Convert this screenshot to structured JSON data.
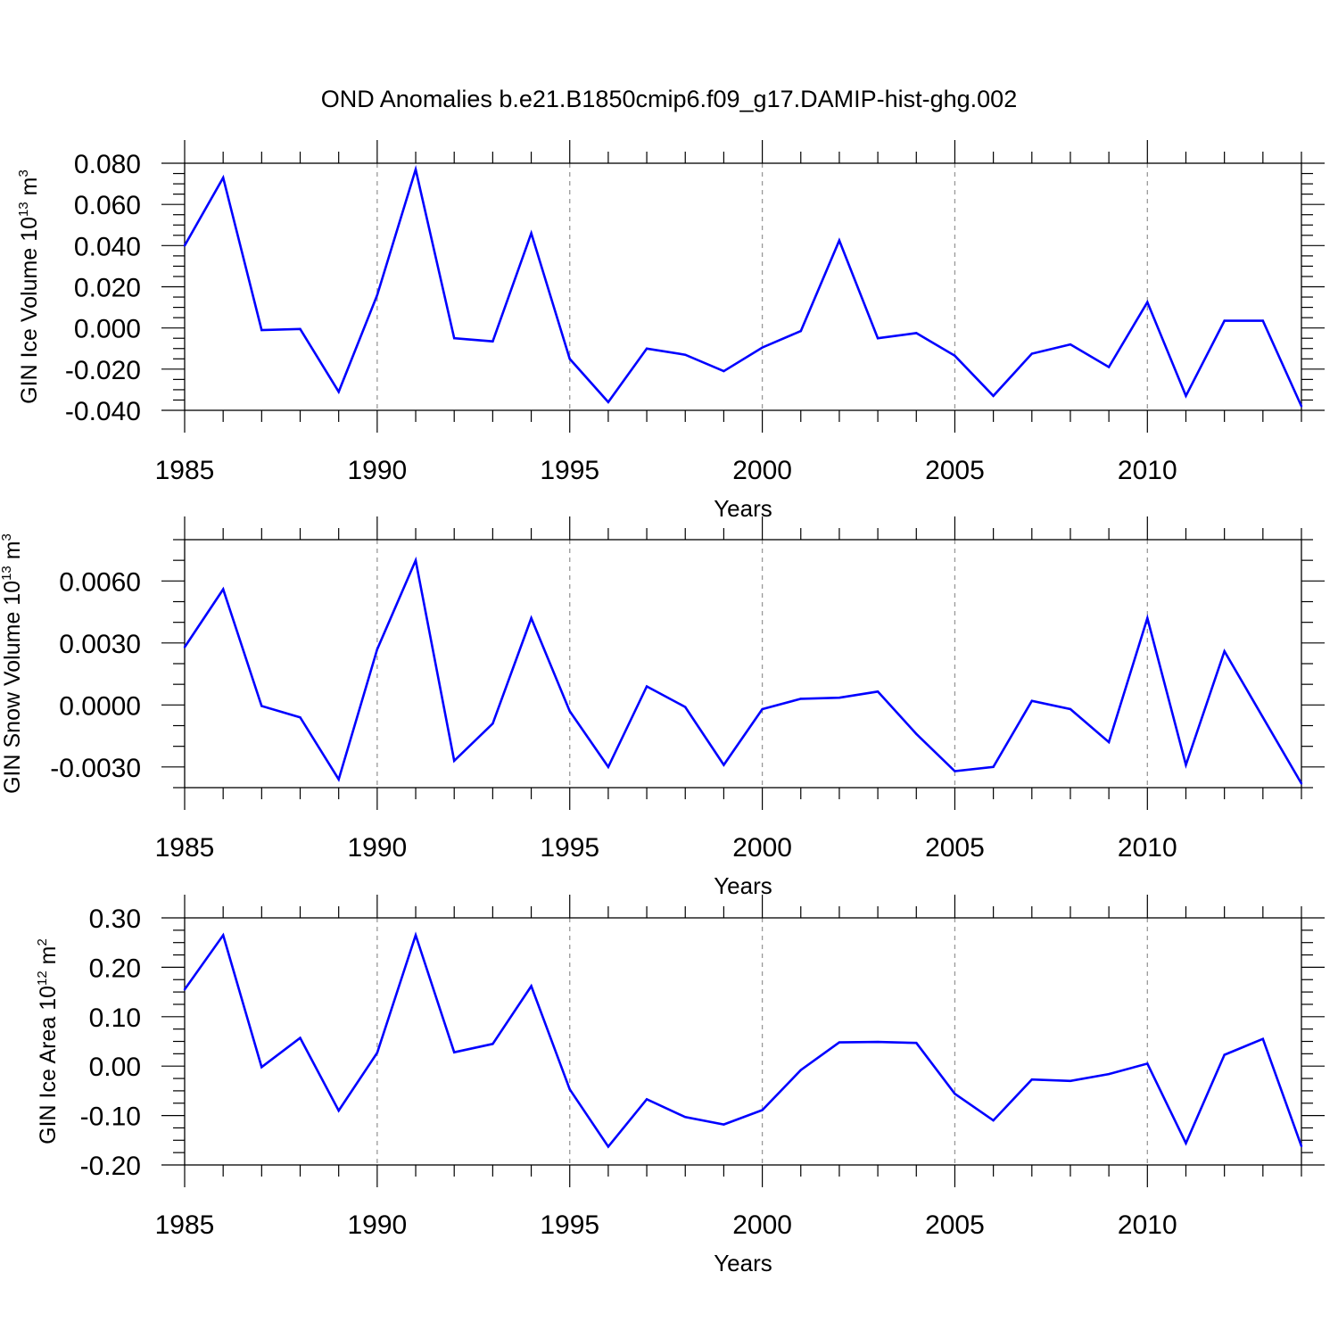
{
  "figure": {
    "title": "OND Anomalies b.e21.B1850cmip6.f09_g17.DAMIP-hist-ghg.002",
    "line_color": "#0000ff",
    "grid_color": "#999999"
  },
  "chart_data": [
    {
      "type": "line",
      "ylabel": {
        "base": "GIN Ice Volume 10",
        "exp": "13",
        "unit": " m",
        "unit_exp": "3"
      },
      "xlabel": "Years",
      "x": [
        1985,
        1986,
        1987,
        1988,
        1989,
        1990,
        1991,
        1992,
        1993,
        1994,
        1995,
        1996,
        1997,
        1998,
        1999,
        2000,
        2001,
        2002,
        2003,
        2004,
        2005,
        2006,
        2007,
        2008,
        2009,
        2010,
        2011,
        2012,
        2013,
        2014
      ],
      "series": [
        {
          "values": [
            0.04,
            0.073,
            -0.001,
            -0.0005,
            -0.031,
            0.016,
            0.077,
            -0.005,
            -0.0065,
            0.046,
            -0.015,
            -0.036,
            -0.01,
            -0.013,
            -0.021,
            -0.0095,
            -0.0015,
            0.0425,
            -0.005,
            -0.0025,
            -0.0135,
            -0.033,
            -0.0125,
            -0.008,
            -0.019,
            0.0125,
            -0.033,
            0.0035,
            0.0035,
            -0.038
          ]
        }
      ],
      "xlim": [
        1985,
        2014
      ],
      "ylim": [
        -0.04,
        0.08
      ],
      "xticks": [
        "1985",
        "1990",
        "1995",
        "2000",
        "2005",
        "2010"
      ],
      "xtick_values": [
        1985,
        1990,
        1995,
        2000,
        2005,
        2010
      ],
      "yticks": [
        "0.080",
        "0.060",
        "0.040",
        "0.020",
        "0.000",
        "-0.020",
        "-0.040"
      ],
      "ytick_values": [
        0.08,
        0.06,
        0.04,
        0.02,
        0.0,
        -0.02,
        -0.04
      ],
      "yminor_step": 0.005,
      "grid": "dashed vertical at major x ticks"
    },
    {
      "type": "line",
      "ylabel": {
        "base": "GIN Snow Volume 10",
        "exp": "13",
        "unit": " m",
        "unit_exp": "3"
      },
      "xlabel": "Years",
      "x": [
        1985,
        1986,
        1987,
        1988,
        1989,
        1990,
        1991,
        1992,
        1993,
        1994,
        1995,
        1996,
        1997,
        1998,
        1999,
        2000,
        2001,
        2002,
        2003,
        2004,
        2005,
        2006,
        2007,
        2008,
        2009,
        2010,
        2011,
        2012,
        2013,
        2014
      ],
      "series": [
        {
          "values": [
            0.0028,
            0.0056,
            -5e-05,
            -0.0006,
            -0.0036,
            0.0027,
            0.007,
            -0.0027,
            -0.0009,
            0.0042,
            -0.0003,
            -0.003,
            0.0009,
            -0.0001,
            -0.0029,
            -0.0002,
            0.0003,
            0.00035,
            0.00065,
            -0.0014,
            -0.0032,
            -0.003,
            0.0002,
            -0.0002,
            -0.0018,
            0.0042,
            -0.0029,
            0.0026,
            -0.0006,
            -0.0038
          ]
        }
      ],
      "xlim": [
        1985,
        2014
      ],
      "ylim": [
        -0.004,
        0.008
      ],
      "xticks": [
        "1985",
        "1990",
        "1995",
        "2000",
        "2005",
        "2010"
      ],
      "xtick_values": [
        1985,
        1990,
        1995,
        2000,
        2005,
        2010
      ],
      "yticks": [
        "0.0060",
        "0.0030",
        "0.0000",
        "-0.0030"
      ],
      "ytick_values": [
        0.006,
        0.003,
        0.0,
        -0.003
      ],
      "yminor_step": 0.001,
      "grid": "dashed vertical at major x ticks"
    },
    {
      "type": "line",
      "ylabel": {
        "base": "GIN Ice Area 10",
        "exp": "12",
        "unit": " m",
        "unit_exp": "2"
      },
      "xlabel": "Years",
      "x": [
        1985,
        1986,
        1987,
        1988,
        1989,
        1990,
        1991,
        1992,
        1993,
        1994,
        1995,
        1996,
        1997,
        1998,
        1999,
        2000,
        2001,
        2002,
        2003,
        2004,
        2005,
        2006,
        2007,
        2008,
        2009,
        2010,
        2011,
        2012,
        2013,
        2014
      ],
      "series": [
        {
          "values": [
            0.155,
            0.265,
            -0.002,
            0.057,
            -0.09,
            0.027,
            0.265,
            0.028,
            0.045,
            0.162,
            -0.047,
            -0.163,
            -0.067,
            -0.103,
            -0.118,
            -0.089,
            -0.008,
            0.048,
            0.049,
            0.047,
            -0.056,
            -0.11,
            -0.027,
            -0.03,
            -0.016,
            0.005,
            -0.156,
            0.023,
            0.055,
            -0.162
          ]
        }
      ],
      "xlim": [
        1985,
        2014
      ],
      "ylim": [
        -0.2,
        0.3
      ],
      "xticks": [
        "1985",
        "1990",
        "1995",
        "2000",
        "2005",
        "2010"
      ],
      "xtick_values": [
        1985,
        1990,
        1995,
        2000,
        2005,
        2010
      ],
      "yticks": [
        "0.30",
        "0.20",
        "0.10",
        "0.00",
        "-0.10",
        "-0.20"
      ],
      "ytick_values": [
        0.3,
        0.2,
        0.1,
        0.0,
        -0.1,
        -0.2
      ],
      "yminor_step": 0.025,
      "grid": "dashed vertical at major x ticks"
    }
  ]
}
